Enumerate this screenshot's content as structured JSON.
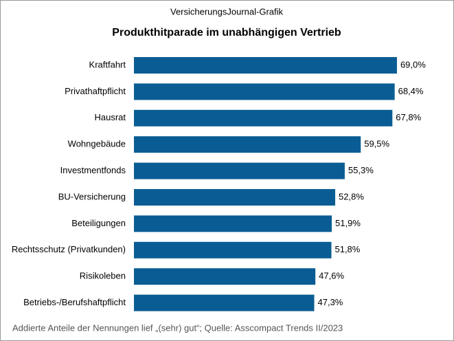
{
  "chart_data": {
    "type": "bar",
    "orientation": "horizontal",
    "subtitle": "VersicherungsJournal-Grafik",
    "title": "Produkthitparade  im unabhängigen  Vertrieb",
    "categories": [
      "Kraftfahrt",
      "Privathaftpflicht",
      "Hausrat",
      "Wohngebäude",
      "Investmentfonds",
      "BU-Versicherung",
      "Beteiligungen",
      "Rechtsschutz (Privatkunden)",
      "Risikoleben",
      "Betriebs-/Berufshaftpflicht"
    ],
    "values": [
      69.0,
      68.4,
      67.8,
      59.5,
      55.3,
      52.8,
      51.9,
      51.8,
      47.6,
      47.3
    ],
    "value_labels": [
      "69,0%",
      "68,4%",
      "67,8%",
      "59,5%",
      "55,3%",
      "52,8%",
      "51,9%",
      "51,8%",
      "47,6%",
      "47,3%"
    ],
    "color": "#0a5d94",
    "note": "Addierte Anteile der Nennungen  lief „(sehr) gut“; Quelle: Asscompact Trends II/2023"
  }
}
